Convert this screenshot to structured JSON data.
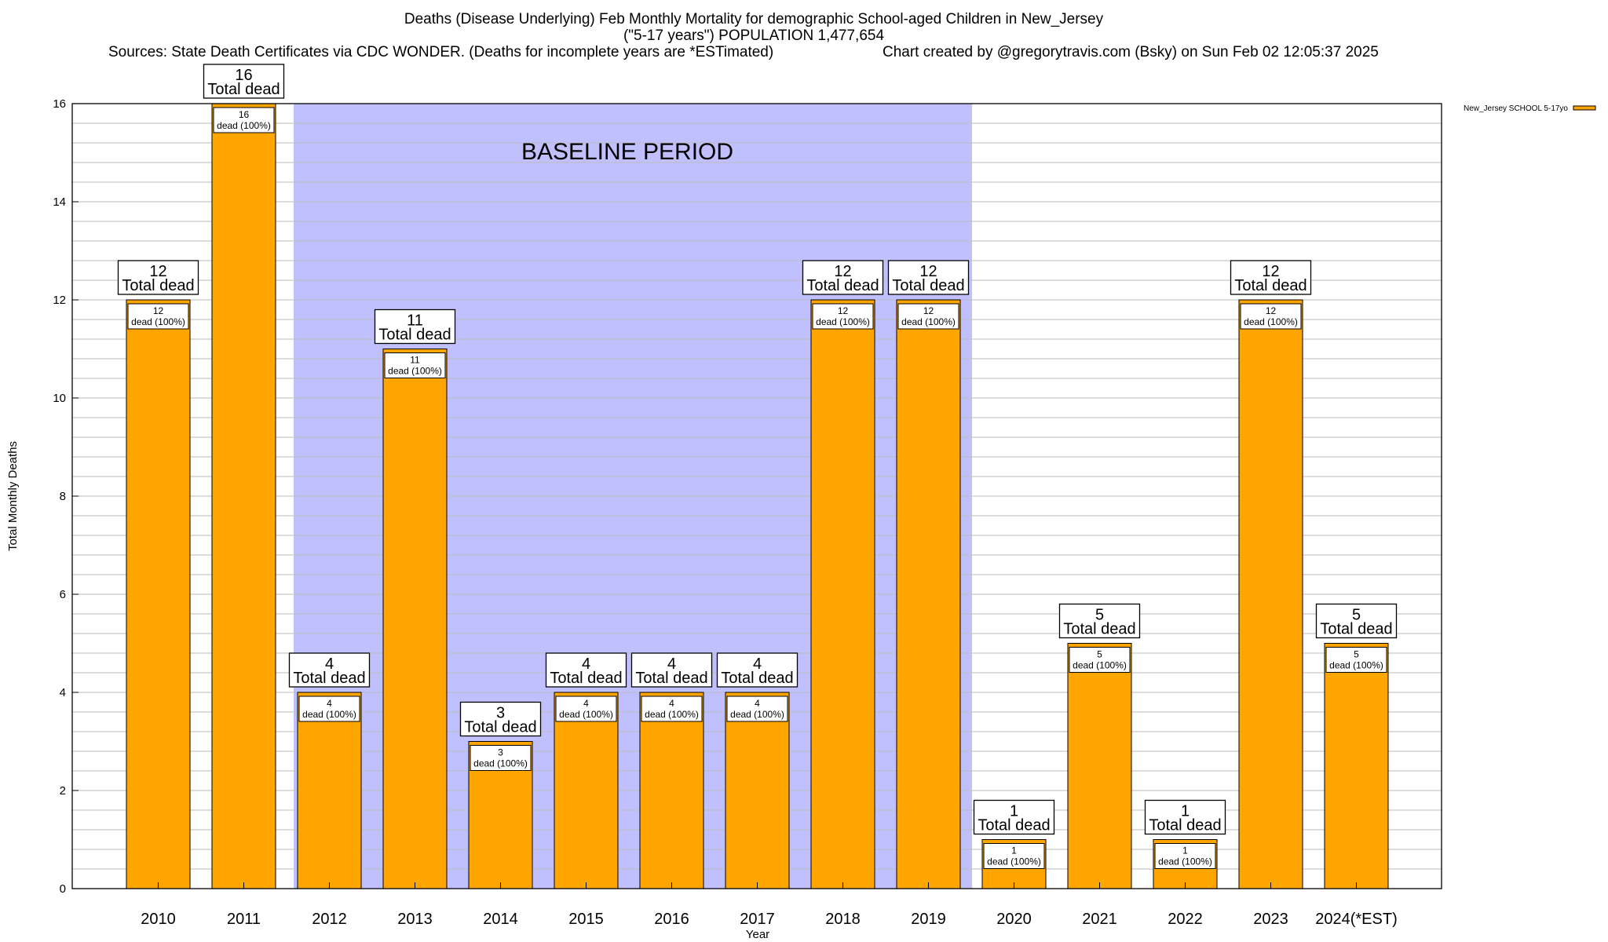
{
  "chart_data": {
    "type": "bar",
    "title_lines": [
      "Deaths (Disease Underlying) Feb Monthly Mortality for demographic School-aged Children in New_Jersey",
      "(\"5-17 years\") POPULATION 1,477,654"
    ],
    "sources": "Sources: State Death Certificates via CDC WONDER. (Deaths for incomplete years are *ESTimated)",
    "credit": "Chart created by @gregorytravis.com (Bsky) on Sun Feb 02 12:05:37 2025",
    "xlabel": "Year",
    "ylabel": "Total Monthly Deaths",
    "ylim": [
      0,
      16
    ],
    "yticks": [
      0,
      2,
      4,
      6,
      8,
      10,
      12,
      14,
      16
    ],
    "grid": true,
    "categories": [
      "2010",
      "2011",
      "2012",
      "2013",
      "2014",
      "2015",
      "2016",
      "2017",
      "2018",
      "2019",
      "2020",
      "2021",
      "2022",
      "2023",
      "2024(*EST)"
    ],
    "series": [
      {
        "name": "New_Jersey SCHOOL 5-17yo",
        "color": "#ffa500",
        "values": [
          12,
          16,
          4,
          11,
          3,
          4,
          4,
          4,
          12,
          12,
          1,
          5,
          1,
          12,
          5
        ]
      }
    ],
    "total_label_suffix": "Total dead",
    "segment_label_suffix": "dead (100%)",
    "shaded_region": {
      "label": "BASELINE PERIOD",
      "from": "2012",
      "to": "2019",
      "color": "#c0c0ff"
    },
    "legend_position": "top-right"
  }
}
